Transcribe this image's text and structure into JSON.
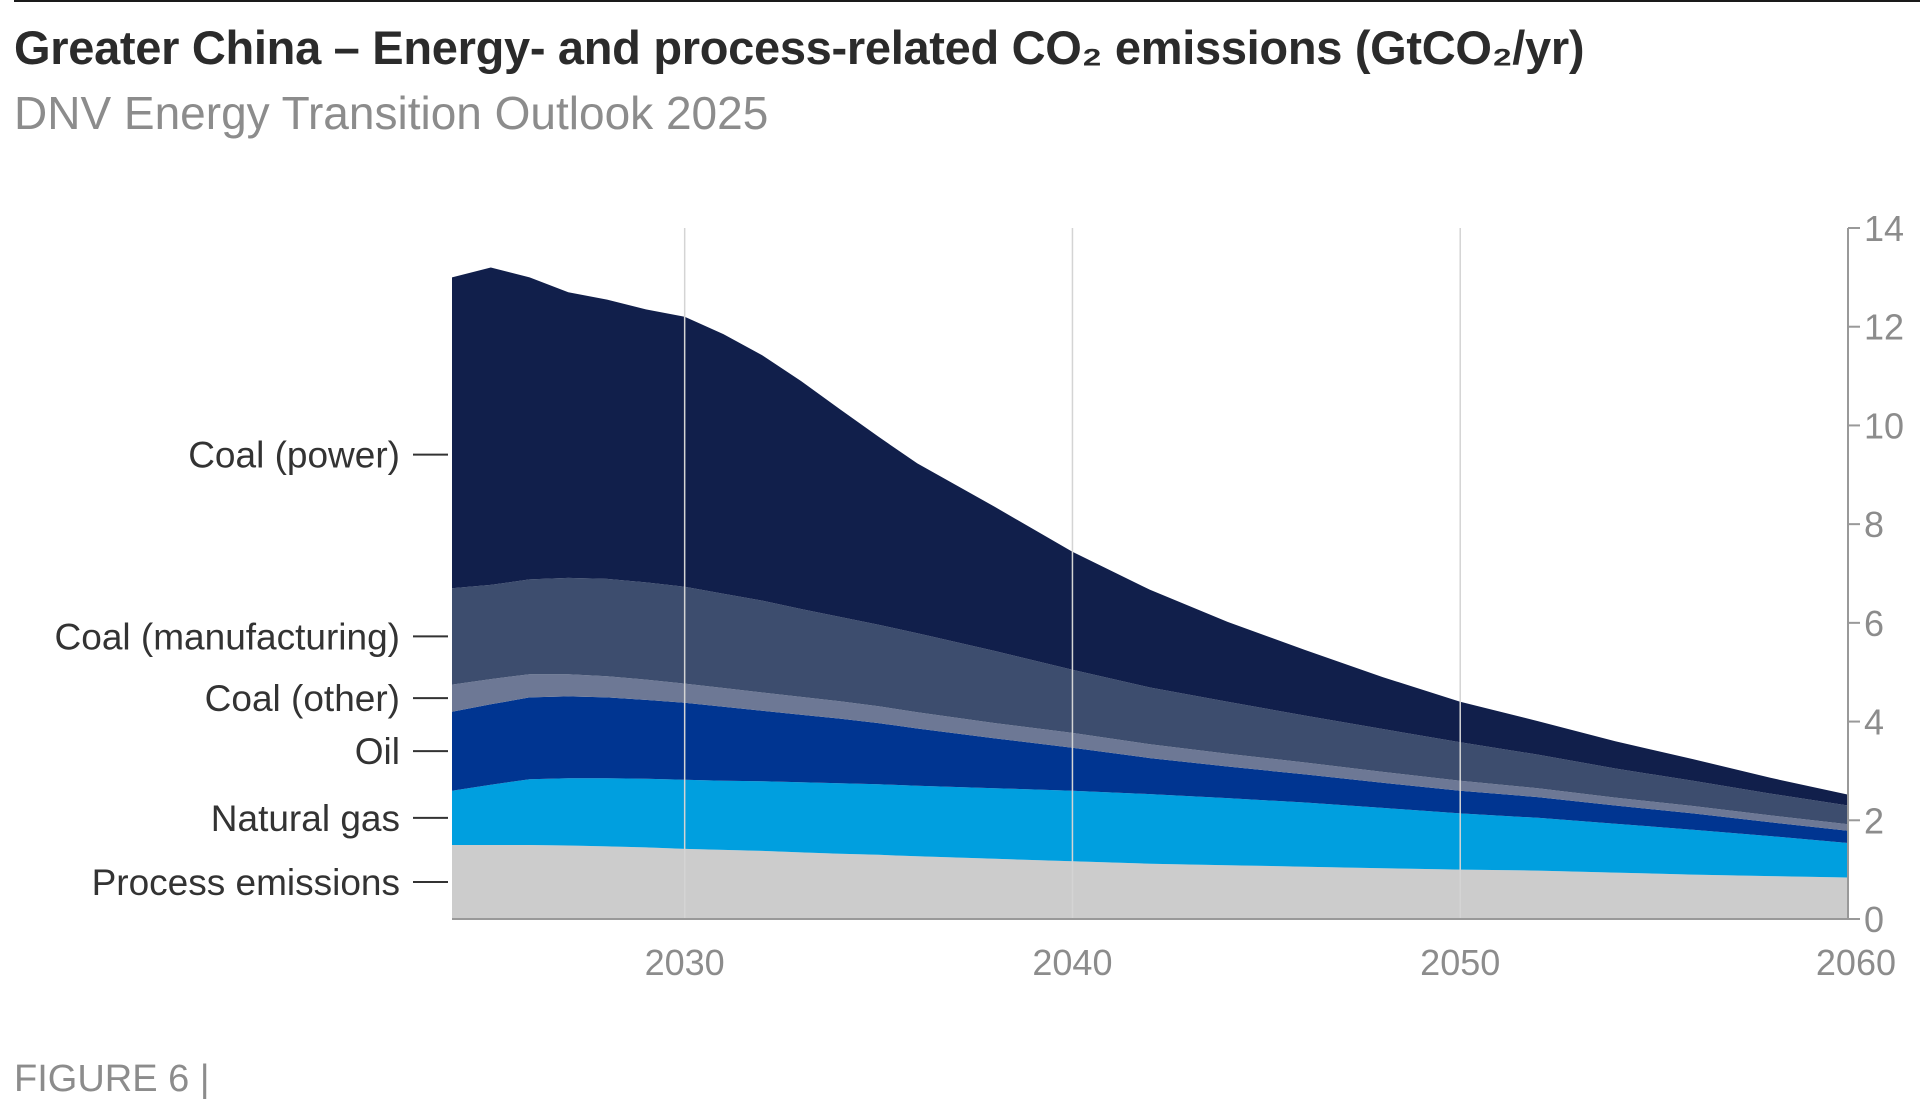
{
  "header": {
    "title": "Greater China – Energy- and process-related CO₂ emissions (GtCO₂/yr)",
    "subtitle": "DNV Energy Transition Outlook 2025"
  },
  "footer": {
    "figure_label": "FIGURE 6 |"
  },
  "colors": {
    "coal_power": "#111f4b",
    "coal_manufacturing": "#3d4d6e",
    "coal_other": "#6d7895",
    "oil": "#003591",
    "natural_gas": "#009fdf",
    "process_emissions": "#cccccc",
    "gridline": "#d4d4d4",
    "axis": "#999999"
  },
  "chart_data": {
    "type": "area",
    "stacked": true,
    "title": "Greater China – Energy- and process-related CO₂ emissions (GtCO₂/yr)",
    "x": [
      2024,
      2025,
      2026,
      2027,
      2028,
      2029,
      2030,
      2031,
      2032,
      2033,
      2034,
      2035,
      2036,
      2038,
      2040,
      2042,
      2044,
      2046,
      2048,
      2050,
      2052,
      2054,
      2056,
      2058,
      2060
    ],
    "series": [
      {
        "name": "Process emissions",
        "values": [
          1.5,
          1.5,
          1.5,
          1.49,
          1.47,
          1.45,
          1.42,
          1.4,
          1.38,
          1.35,
          1.32,
          1.3,
          1.27,
          1.22,
          1.17,
          1.12,
          1.09,
          1.06,
          1.03,
          1.0,
          0.98,
          0.94,
          0.9,
          0.87,
          0.84
        ]
      },
      {
        "name": "Natural gas",
        "values": [
          1.1,
          1.22,
          1.33,
          1.36,
          1.38,
          1.39,
          1.4,
          1.4,
          1.41,
          1.42,
          1.43,
          1.43,
          1.43,
          1.43,
          1.43,
          1.41,
          1.36,
          1.3,
          1.22,
          1.14,
          1.07,
          0.99,
          0.91,
          0.81,
          0.7
        ]
      },
      {
        "name": "Oil",
        "values": [
          1.6,
          1.63,
          1.66,
          1.66,
          1.64,
          1.6,
          1.56,
          1.5,
          1.43,
          1.37,
          1.31,
          1.24,
          1.16,
          1.01,
          0.87,
          0.73,
          0.64,
          0.57,
          0.51,
          0.46,
          0.42,
          0.37,
          0.33,
          0.28,
          0.25
        ]
      },
      {
        "name": "Coal (other)",
        "values": [
          0.55,
          0.51,
          0.47,
          0.45,
          0.43,
          0.41,
          0.39,
          0.38,
          0.37,
          0.36,
          0.35,
          0.34,
          0.33,
          0.31,
          0.3,
          0.28,
          0.26,
          0.24,
          0.22,
          0.2,
          0.18,
          0.16,
          0.15,
          0.14,
          0.13
        ]
      },
      {
        "name": "Coal (manufacturing)",
        "values": [
          1.95,
          1.91,
          1.92,
          1.95,
          1.97,
          1.97,
          1.96,
          1.91,
          1.86,
          1.78,
          1.71,
          1.65,
          1.6,
          1.46,
          1.28,
          1.15,
          1.05,
          0.95,
          0.87,
          0.78,
          0.68,
          0.59,
          0.51,
          0.44,
          0.38
        ]
      },
      {
        "name": "Coal (power)",
        "values": [
          6.3,
          6.43,
          6.12,
          5.79,
          5.66,
          5.53,
          5.47,
          5.26,
          4.97,
          4.62,
          4.21,
          3.81,
          3.44,
          2.92,
          2.39,
          1.98,
          1.62,
          1.33,
          1.05,
          0.82,
          0.68,
          0.55,
          0.44,
          0.32,
          0.22
        ]
      }
    ],
    "xlim": [
      2024,
      2060
    ],
    "ylim": [
      0,
      14
    ],
    "x_ticks": [
      2030,
      2040,
      2050,
      2060
    ],
    "y_ticks": [
      0,
      2,
      4,
      6,
      8,
      10,
      12,
      14
    ],
    "y_axis_position": "right",
    "grid": "vertical lines at x ticks",
    "legend": "direct labels on left"
  }
}
